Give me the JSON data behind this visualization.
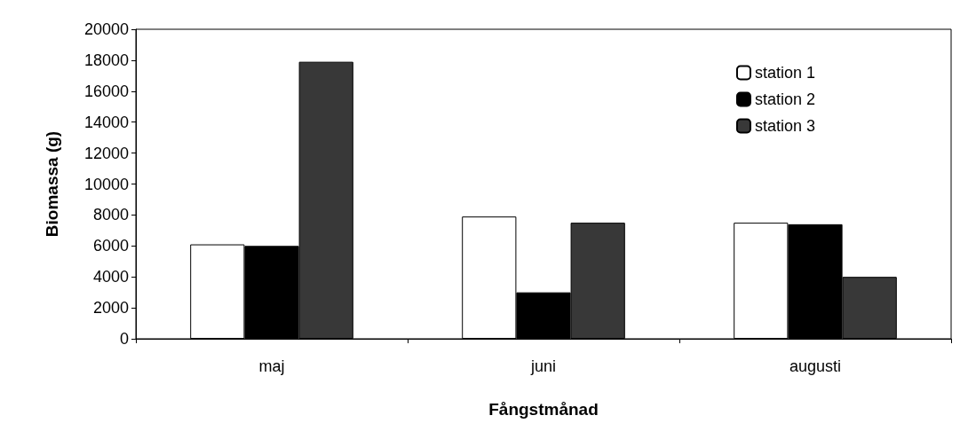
{
  "chart_data": {
    "type": "bar",
    "xlabel": "Fångstmånad",
    "ylabel": "Biomassa (g)",
    "categories": [
      "maj",
      "juni",
      "augusti"
    ],
    "series": [
      {
        "name": "station 1",
        "color": "#ffffff",
        "values": [
          6100,
          7900,
          7500
        ]
      },
      {
        "name": "station 2",
        "color": "#000000",
        "values": [
          6000,
          3000,
          7400
        ]
      },
      {
        "name": "station 3",
        "color": "#383838",
        "values": [
          17900,
          7500,
          4000
        ]
      }
    ],
    "ylim": [
      0,
      20000
    ],
    "yticks": [
      0,
      2000,
      4000,
      6000,
      8000,
      10000,
      12000,
      14000,
      16000,
      18000,
      20000
    ],
    "grid": false,
    "legend": "top right"
  }
}
